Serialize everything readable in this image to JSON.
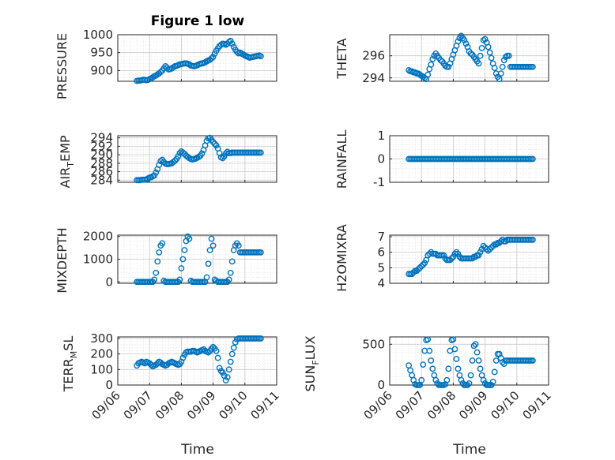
{
  "figure": {
    "title": "Figure 1 low",
    "marker_color": "#0072bd",
    "x_tick_labels": [
      "09/06",
      "09/07",
      "09/08",
      "09/09",
      "09/10",
      "09/11"
    ]
  },
  "chart_data": [
    {
      "type": "scatter",
      "title": "Figure 1 low",
      "ylabel": "PRESSURE",
      "xlabel": "",
      "xlim": [
        "09/06",
        "09/11"
      ],
      "ylim": [
        870,
        1000
      ],
      "y_ticks": [
        900,
        950,
        1000
      ],
      "grid": true,
      "marker": "circle-open",
      "x": [
        0.6,
        0.65,
        0.7,
        0.75,
        0.8,
        0.85,
        0.9,
        0.95,
        1.0,
        1.05,
        1.1,
        1.15,
        1.2,
        1.25,
        1.3,
        1.35,
        1.4,
        1.45,
        1.5,
        1.55,
        1.6,
        1.65,
        1.7,
        1.75,
        1.8,
        1.85,
        1.9,
        1.95,
        2.0,
        2.05,
        2.1,
        2.15,
        2.2,
        2.25,
        2.3,
        2.35,
        2.4,
        2.45,
        2.5,
        2.55,
        2.6,
        2.65,
        2.7,
        2.75,
        2.8,
        2.85,
        2.9,
        2.95,
        3.0,
        3.05,
        3.1,
        3.15,
        3.2,
        3.25,
        3.3,
        3.35,
        3.4,
        3.45,
        3.5,
        3.55,
        3.6,
        3.65,
        3.7,
        3.75,
        3.8,
        3.85,
        3.9,
        3.95,
        4.0,
        4.05,
        4.1,
        4.15,
        4.2,
        4.25,
        4.3,
        4.35,
        4.4,
        4.45,
        4.5
      ],
      "y": [
        871,
        872,
        872,
        873,
        874,
        874,
        873,
        874,
        876,
        878,
        881,
        884,
        886,
        889,
        892,
        896,
        900,
        906,
        912,
        908,
        903,
        904,
        906,
        909,
        912,
        913,
        915,
        917,
        918,
        919,
        920,
        920,
        919,
        917,
        914,
        913,
        912,
        913,
        915,
        917,
        919,
        920,
        921,
        923,
        926,
        928,
        930,
        934,
        938,
        947,
        955,
        962,
        968,
        972,
        975,
        974,
        972,
        975,
        980,
        983,
        975,
        966,
        958,
        952,
        948,
        950,
        947,
        945,
        942,
        940,
        938,
        936,
        937,
        938,
        939,
        940,
        941,
        942,
        940
      ]
    },
    {
      "type": "scatter",
      "ylabel": "THETA",
      "xlabel": "",
      "xlim": [
        "09/06",
        "09/11"
      ],
      "ylim": [
        293.7,
        297.9
      ],
      "y_ticks": [
        294,
        296
      ],
      "grid": true,
      "marker": "circle-open",
      "x": [
        0.6,
        0.65,
        0.7,
        0.75,
        0.8,
        0.85,
        0.9,
        0.95,
        1.0,
        1.05,
        1.1,
        1.15,
        1.2,
        1.25,
        1.3,
        1.35,
        1.4,
        1.45,
        1.5,
        1.55,
        1.6,
        1.65,
        1.7,
        1.75,
        1.8,
        1.85,
        1.9,
        1.95,
        2.0,
        2.05,
        2.1,
        2.15,
        2.2,
        2.25,
        2.3,
        2.35,
        2.4,
        2.45,
        2.5,
        2.55,
        2.6,
        2.65,
        2.7,
        2.75,
        2.8,
        2.85,
        2.9,
        2.95,
        3.0,
        3.05,
        3.1,
        3.15,
        3.2,
        3.25,
        3.3,
        3.35,
        3.4,
        3.45,
        3.5,
        3.55,
        3.6,
        3.65,
        3.7,
        3.75,
        3.8,
        3.85,
        3.9,
        3.95,
        4.0,
        4.05,
        4.1,
        4.15,
        4.2,
        4.25,
        4.3,
        4.35,
        4.4,
        4.45,
        4.5
      ],
      "y": [
        294.7,
        294.6,
        294.6,
        294.5,
        294.5,
        294.4,
        294.4,
        294.3,
        294.2,
        294.1,
        294.0,
        293.9,
        294.3,
        294.8,
        295.2,
        295.7,
        296.0,
        296.2,
        296.0,
        295.8,
        295.6,
        295.5,
        295.3,
        295.1,
        295.0,
        295.0,
        295.3,
        295.7,
        296.1,
        296.5,
        296.9,
        297.3,
        297.6,
        297.8,
        297.6,
        297.4,
        297.1,
        296.8,
        296.4,
        296.2,
        296.1,
        295.9,
        295.7,
        295.5,
        295.3,
        296.0,
        296.7,
        297.4,
        297.5,
        297.2,
        296.8,
        296.3,
        295.8,
        295.3,
        294.9,
        294.4,
        294.1,
        293.9,
        294.4,
        295.0,
        295.6,
        295.9,
        296.0,
        296.0,
        295.0,
        295.0,
        295.0,
        295.0,
        295.0,
        295.0,
        295.0,
        295.0,
        295.0,
        295.0,
        295.0,
        295.0,
        295.0,
        295.0,
        295.0
      ]
    },
    {
      "type": "scatter",
      "ylabel": "AIR_TEMP",
      "xlabel": "",
      "xlim": [
        "09/06",
        "09/11"
      ],
      "ylim": [
        283.5,
        294.5
      ],
      "y_ticks": [
        284,
        286,
        288,
        290,
        292,
        294
      ],
      "grid": true,
      "marker": "circle-open",
      "x": [
        0.6,
        0.65,
        0.7,
        0.75,
        0.8,
        0.85,
        0.9,
        0.95,
        1.0,
        1.05,
        1.1,
        1.15,
        1.2,
        1.25,
        1.3,
        1.35,
        1.4,
        1.45,
        1.5,
        1.55,
        1.6,
        1.65,
        1.7,
        1.75,
        1.8,
        1.85,
        1.9,
        1.95,
        2.0,
        2.05,
        2.1,
        2.15,
        2.2,
        2.25,
        2.3,
        2.35,
        2.4,
        2.45,
        2.5,
        2.55,
        2.6,
        2.65,
        2.7,
        2.75,
        2.8,
        2.85,
        2.9,
        2.95,
        3.0,
        3.05,
        3.1,
        3.15,
        3.2,
        3.25,
        3.3,
        3.35,
        3.4,
        3.45,
        3.5,
        3.55,
        3.6,
        3.65,
        3.7,
        3.75,
        3.8,
        3.85,
        3.9,
        3.95,
        4.0,
        4.05,
        4.1,
        4.15,
        4.2,
        4.25,
        4.3,
        4.35,
        4.4,
        4.45,
        4.5
      ],
      "y": [
        284.0,
        284.0,
        284.0,
        284.1,
        284.1,
        284.1,
        284.2,
        284.4,
        284.6,
        284.7,
        284.9,
        285.1,
        285.8,
        286.6,
        287.6,
        288.5,
        288.8,
        288.3,
        287.9,
        287.8,
        287.8,
        287.9,
        288.0,
        288.3,
        288.6,
        289.0,
        289.6,
        290.4,
        290.8,
        290.5,
        290.2,
        289.8,
        289.5,
        289.2,
        289.0,
        288.9,
        289.0,
        289.1,
        289.3,
        289.5,
        289.8,
        290.3,
        291.1,
        292.2,
        293.3,
        293.9,
        294.0,
        293.5,
        293.0,
        292.6,
        292.2,
        291.5,
        290.4,
        289.4,
        289.2,
        289.6,
        290.3,
        290.7,
        290.4,
        290.4,
        290.5,
        290.5,
        290.5,
        290.5,
        290.5,
        290.5,
        290.5,
        290.5,
        290.5,
        290.5,
        290.5,
        290.5,
        290.5,
        290.5,
        290.5,
        290.5,
        290.5,
        290.5,
        290.5
      ]
    },
    {
      "type": "scatter",
      "ylabel": "RAINFALL",
      "xlabel": "",
      "xlim": [
        "09/06",
        "09/11"
      ],
      "ylim": [
        -1,
        1
      ],
      "y_ticks": [
        -1,
        0,
        1
      ],
      "grid": true,
      "marker": "circle-open",
      "x": [
        0.6,
        0.65,
        0.7,
        0.75,
        0.8,
        0.85,
        0.9,
        0.95,
        1.0,
        1.05,
        1.1,
        1.15,
        1.2,
        1.25,
        1.3,
        1.35,
        1.4,
        1.45,
        1.5,
        1.55,
        1.6,
        1.65,
        1.7,
        1.75,
        1.8,
        1.85,
        1.9,
        1.95,
        2.0,
        2.05,
        2.1,
        2.15,
        2.2,
        2.25,
        2.3,
        2.35,
        2.4,
        2.45,
        2.5,
        2.55,
        2.6,
        2.65,
        2.7,
        2.75,
        2.8,
        2.85,
        2.9,
        2.95,
        3.0,
        3.05,
        3.1,
        3.15,
        3.2,
        3.25,
        3.3,
        3.35,
        3.4,
        3.45,
        3.5,
        3.55,
        3.6,
        3.65,
        3.7,
        3.75,
        3.8,
        3.85,
        3.9,
        3.95,
        4.0,
        4.05,
        4.1,
        4.15,
        4.2,
        4.25,
        4.3,
        4.35,
        4.4,
        4.45,
        4.5
      ],
      "y": [
        0,
        0,
        0,
        0,
        0,
        0,
        0,
        0,
        0,
        0,
        0,
        0,
        0,
        0,
        0,
        0,
        0,
        0,
        0,
        0,
        0,
        0,
        0,
        0,
        0,
        0,
        0,
        0,
        0,
        0,
        0,
        0,
        0,
        0,
        0,
        0,
        0,
        0,
        0,
        0,
        0,
        0,
        0,
        0,
        0,
        0,
        0,
        0,
        0,
        0,
        0,
        0,
        0,
        0,
        0,
        0,
        0,
        0,
        0,
        0,
        0,
        0,
        0,
        0,
        0,
        0,
        0,
        0,
        0,
        0,
        0,
        0,
        0,
        0,
        0,
        0,
        0,
        0,
        0
      ]
    },
    {
      "type": "scatter",
      "ylabel": "MIXDEPTH",
      "xlabel": "",
      "xlim": [
        "09/06",
        "09/11"
      ],
      "ylim": [
        -60,
        2060
      ],
      "y_ticks": [
        0,
        1000,
        2000
      ],
      "grid": true,
      "marker": "circle-open",
      "x": [
        0.6,
        0.65,
        0.7,
        0.75,
        0.8,
        0.85,
        0.9,
        0.95,
        1.0,
        1.05,
        1.1,
        1.15,
        1.2,
        1.25,
        1.3,
        1.35,
        1.4,
        1.45,
        1.5,
        1.55,
        1.6,
        1.65,
        1.7,
        1.75,
        1.8,
        1.85,
        1.9,
        1.95,
        2.0,
        2.05,
        2.1,
        2.15,
        2.2,
        2.25,
        2.3,
        2.35,
        2.4,
        2.45,
        2.5,
        2.55,
        2.6,
        2.65,
        2.7,
        2.75,
        2.8,
        2.85,
        2.9,
        2.95,
        3.0,
        3.05,
        3.1,
        3.15,
        3.2,
        3.25,
        3.3,
        3.35,
        3.4,
        3.45,
        3.5,
        3.55,
        3.6,
        3.65,
        3.7,
        3.75,
        3.8,
        3.85,
        3.9,
        3.95,
        4.0,
        4.05,
        4.1,
        4.15,
        4.2,
        4.25,
        4.3,
        4.35,
        4.4,
        4.45,
        4.5
      ],
      "y": [
        0,
        0,
        0,
        0,
        0,
        0,
        0,
        0,
        0,
        0,
        0,
        100,
        400,
        900,
        1300,
        1600,
        1700,
        50,
        0,
        0,
        0,
        0,
        0,
        0,
        0,
        0,
        0,
        100,
        600,
        1000,
        1400,
        1800,
        2000,
        1900,
        50,
        0,
        0,
        0,
        0,
        0,
        0,
        0,
        0,
        0,
        200,
        800,
        1400,
        1900,
        1600,
        100,
        50,
        0,
        0,
        0,
        0,
        0,
        0,
        0,
        100,
        400,
        900,
        1400,
        1600,
        1700,
        1600,
        1300,
        1300,
        1300,
        1300,
        1300,
        1300,
        1300,
        1300,
        1300,
        1300,
        1300,
        1300,
        1300,
        1300
      ]
    },
    {
      "type": "scatter",
      "ylabel": "H2OMIXRA",
      "xlabel": "",
      "xlim": [
        "09/06",
        "09/11"
      ],
      "ylim": [
        4,
        7.1
      ],
      "y_ticks": [
        4,
        5,
        6,
        7
      ],
      "grid": true,
      "marker": "circle-open",
      "x": [
        0.6,
        0.65,
        0.7,
        0.75,
        0.8,
        0.85,
        0.9,
        0.95,
        1.0,
        1.05,
        1.1,
        1.15,
        1.2,
        1.25,
        1.3,
        1.35,
        1.4,
        1.45,
        1.5,
        1.55,
        1.6,
        1.65,
        1.7,
        1.75,
        1.8,
        1.85,
        1.9,
        1.95,
        2.0,
        2.05,
        2.1,
        2.15,
        2.2,
        2.25,
        2.3,
        2.35,
        2.4,
        2.45,
        2.5,
        2.55,
        2.6,
        2.65,
        2.7,
        2.75,
        2.8,
        2.85,
        2.9,
        2.95,
        3.0,
        3.05,
        3.1,
        3.15,
        3.2,
        3.25,
        3.3,
        3.35,
        3.4,
        3.45,
        3.5,
        3.55,
        3.6,
        3.65,
        3.7,
        3.75,
        3.8,
        3.85,
        3.9,
        3.95,
        4.0,
        4.05,
        4.1,
        4.15,
        4.2,
        4.25,
        4.3,
        4.35,
        4.4,
        4.45,
        4.5
      ],
      "y": [
        4.6,
        4.6,
        4.6,
        4.7,
        4.8,
        4.8,
        4.9,
        5.0,
        5.1,
        5.2,
        5.3,
        5.5,
        5.8,
        5.9,
        6.0,
        5.9,
        5.9,
        5.9,
        5.8,
        5.8,
        5.8,
        5.8,
        5.8,
        5.6,
        5.5,
        5.5,
        5.5,
        5.6,
        5.7,
        5.9,
        6.0,
        5.9,
        5.7,
        5.6,
        5.6,
        5.6,
        5.6,
        5.6,
        5.6,
        5.6,
        5.6,
        5.7,
        5.7,
        5.8,
        5.8,
        6.0,
        6.2,
        6.4,
        6.3,
        6.2,
        6.1,
        6.2,
        6.3,
        6.4,
        6.5,
        6.5,
        6.6,
        6.6,
        6.7,
        6.8,
        6.7,
        6.7,
        6.8,
        6.8,
        6.8,
        6.8,
        6.8,
        6.8,
        6.8,
        6.8,
        6.8,
        6.8,
        6.8,
        6.8,
        6.8,
        6.8,
        6.8,
        6.8,
        6.8
      ]
    },
    {
      "type": "scatter",
      "ylabel": "TERR_MSL",
      "xlabel": "Time",
      "xlim": [
        "09/06",
        "09/11"
      ],
      "ylim": [
        0,
        310
      ],
      "y_ticks": [
        0,
        100,
        200,
        300
      ],
      "grid": true,
      "marker": "circle-open",
      "x": [
        0.6,
        0.65,
        0.7,
        0.75,
        0.8,
        0.85,
        0.9,
        0.95,
        1.0,
        1.05,
        1.1,
        1.15,
        1.2,
        1.25,
        1.3,
        1.35,
        1.4,
        1.45,
        1.5,
        1.55,
        1.6,
        1.65,
        1.7,
        1.75,
        1.8,
        1.85,
        1.9,
        1.95,
        2.0,
        2.05,
        2.1,
        2.15,
        2.2,
        2.25,
        2.3,
        2.35,
        2.4,
        2.45,
        2.5,
        2.55,
        2.6,
        2.65,
        2.7,
        2.75,
        2.8,
        2.85,
        2.9,
        2.95,
        3.0,
        3.05,
        3.1,
        3.15,
        3.2,
        3.25,
        3.3,
        3.35,
        3.4,
        3.45,
        3.5,
        3.55,
        3.6,
        3.65,
        3.7,
        3.75,
        3.8,
        3.85,
        3.9,
        3.95,
        4.0,
        4.05,
        4.1,
        4.15,
        4.2,
        4.25,
        4.3,
        4.35,
        4.4,
        4.45,
        4.5
      ],
      "y": [
        125,
        140,
        145,
        150,
        145,
        140,
        150,
        145,
        140,
        130,
        120,
        125,
        130,
        140,
        150,
        145,
        135,
        130,
        125,
        130,
        140,
        145,
        150,
        145,
        140,
        135,
        130,
        135,
        150,
        175,
        195,
        210,
        215,
        215,
        215,
        220,
        220,
        215,
        210,
        215,
        220,
        225,
        230,
        220,
        215,
        210,
        220,
        235,
        245,
        235,
        220,
        175,
        110,
        90,
        80,
        60,
        30,
        50,
        100,
        150,
        200,
        240,
        275,
        295,
        300,
        300,
        300,
        300,
        300,
        300,
        300,
        300,
        300,
        300,
        300,
        300,
        300,
        300,
        300
      ]
    },
    {
      "type": "scatter",
      "ylabel": "SUN_FLUX",
      "xlabel": "Time",
      "xlim": [
        "09/06",
        "09/11"
      ],
      "ylim": [
        0,
        590
      ],
      "y_ticks": [
        0,
        500
      ],
      "grid": true,
      "marker": "circle-open",
      "x": [
        0.6,
        0.65,
        0.7,
        0.75,
        0.8,
        0.85,
        0.9,
        0.95,
        1.0,
        1.05,
        1.1,
        1.15,
        1.2,
        1.25,
        1.3,
        1.35,
        1.4,
        1.45,
        1.5,
        1.55,
        1.6,
        1.65,
        1.7,
        1.75,
        1.8,
        1.85,
        1.9,
        1.95,
        2.0,
        2.05,
        2.1,
        2.15,
        2.2,
        2.25,
        2.3,
        2.35,
        2.4,
        2.45,
        2.5,
        2.55,
        2.6,
        2.65,
        2.7,
        2.75,
        2.8,
        2.85,
        2.9,
        2.95,
        3.0,
        3.05,
        3.1,
        3.15,
        3.2,
        3.25,
        3.3,
        3.35,
        3.4,
        3.45,
        3.5,
        3.55,
        3.6,
        3.65,
        3.7,
        3.75,
        3.8,
        3.85,
        3.9,
        3.95,
        4.0,
        4.05,
        4.1,
        4.15,
        4.2,
        4.25,
        4.3,
        4.35,
        4.4,
        4.45,
        4.5
      ],
      "y": [
        240,
        180,
        120,
        60,
        10,
        0,
        0,
        0,
        60,
        250,
        420,
        550,
        560,
        420,
        300,
        200,
        120,
        60,
        20,
        0,
        0,
        0,
        0,
        10,
        60,
        200,
        420,
        550,
        560,
        440,
        320,
        200,
        120,
        60,
        20,
        0,
        0,
        0,
        20,
        120,
        300,
        480,
        500,
        400,
        300,
        200,
        120,
        60,
        20,
        0,
        0,
        0,
        0,
        40,
        160,
        300,
        380,
        380,
        330,
        280,
        260,
        300,
        300,
        300,
        300,
        300,
        300,
        300,
        300,
        300,
        300,
        300,
        300,
        300,
        300,
        300,
        300,
        300,
        300
      ]
    }
  ]
}
